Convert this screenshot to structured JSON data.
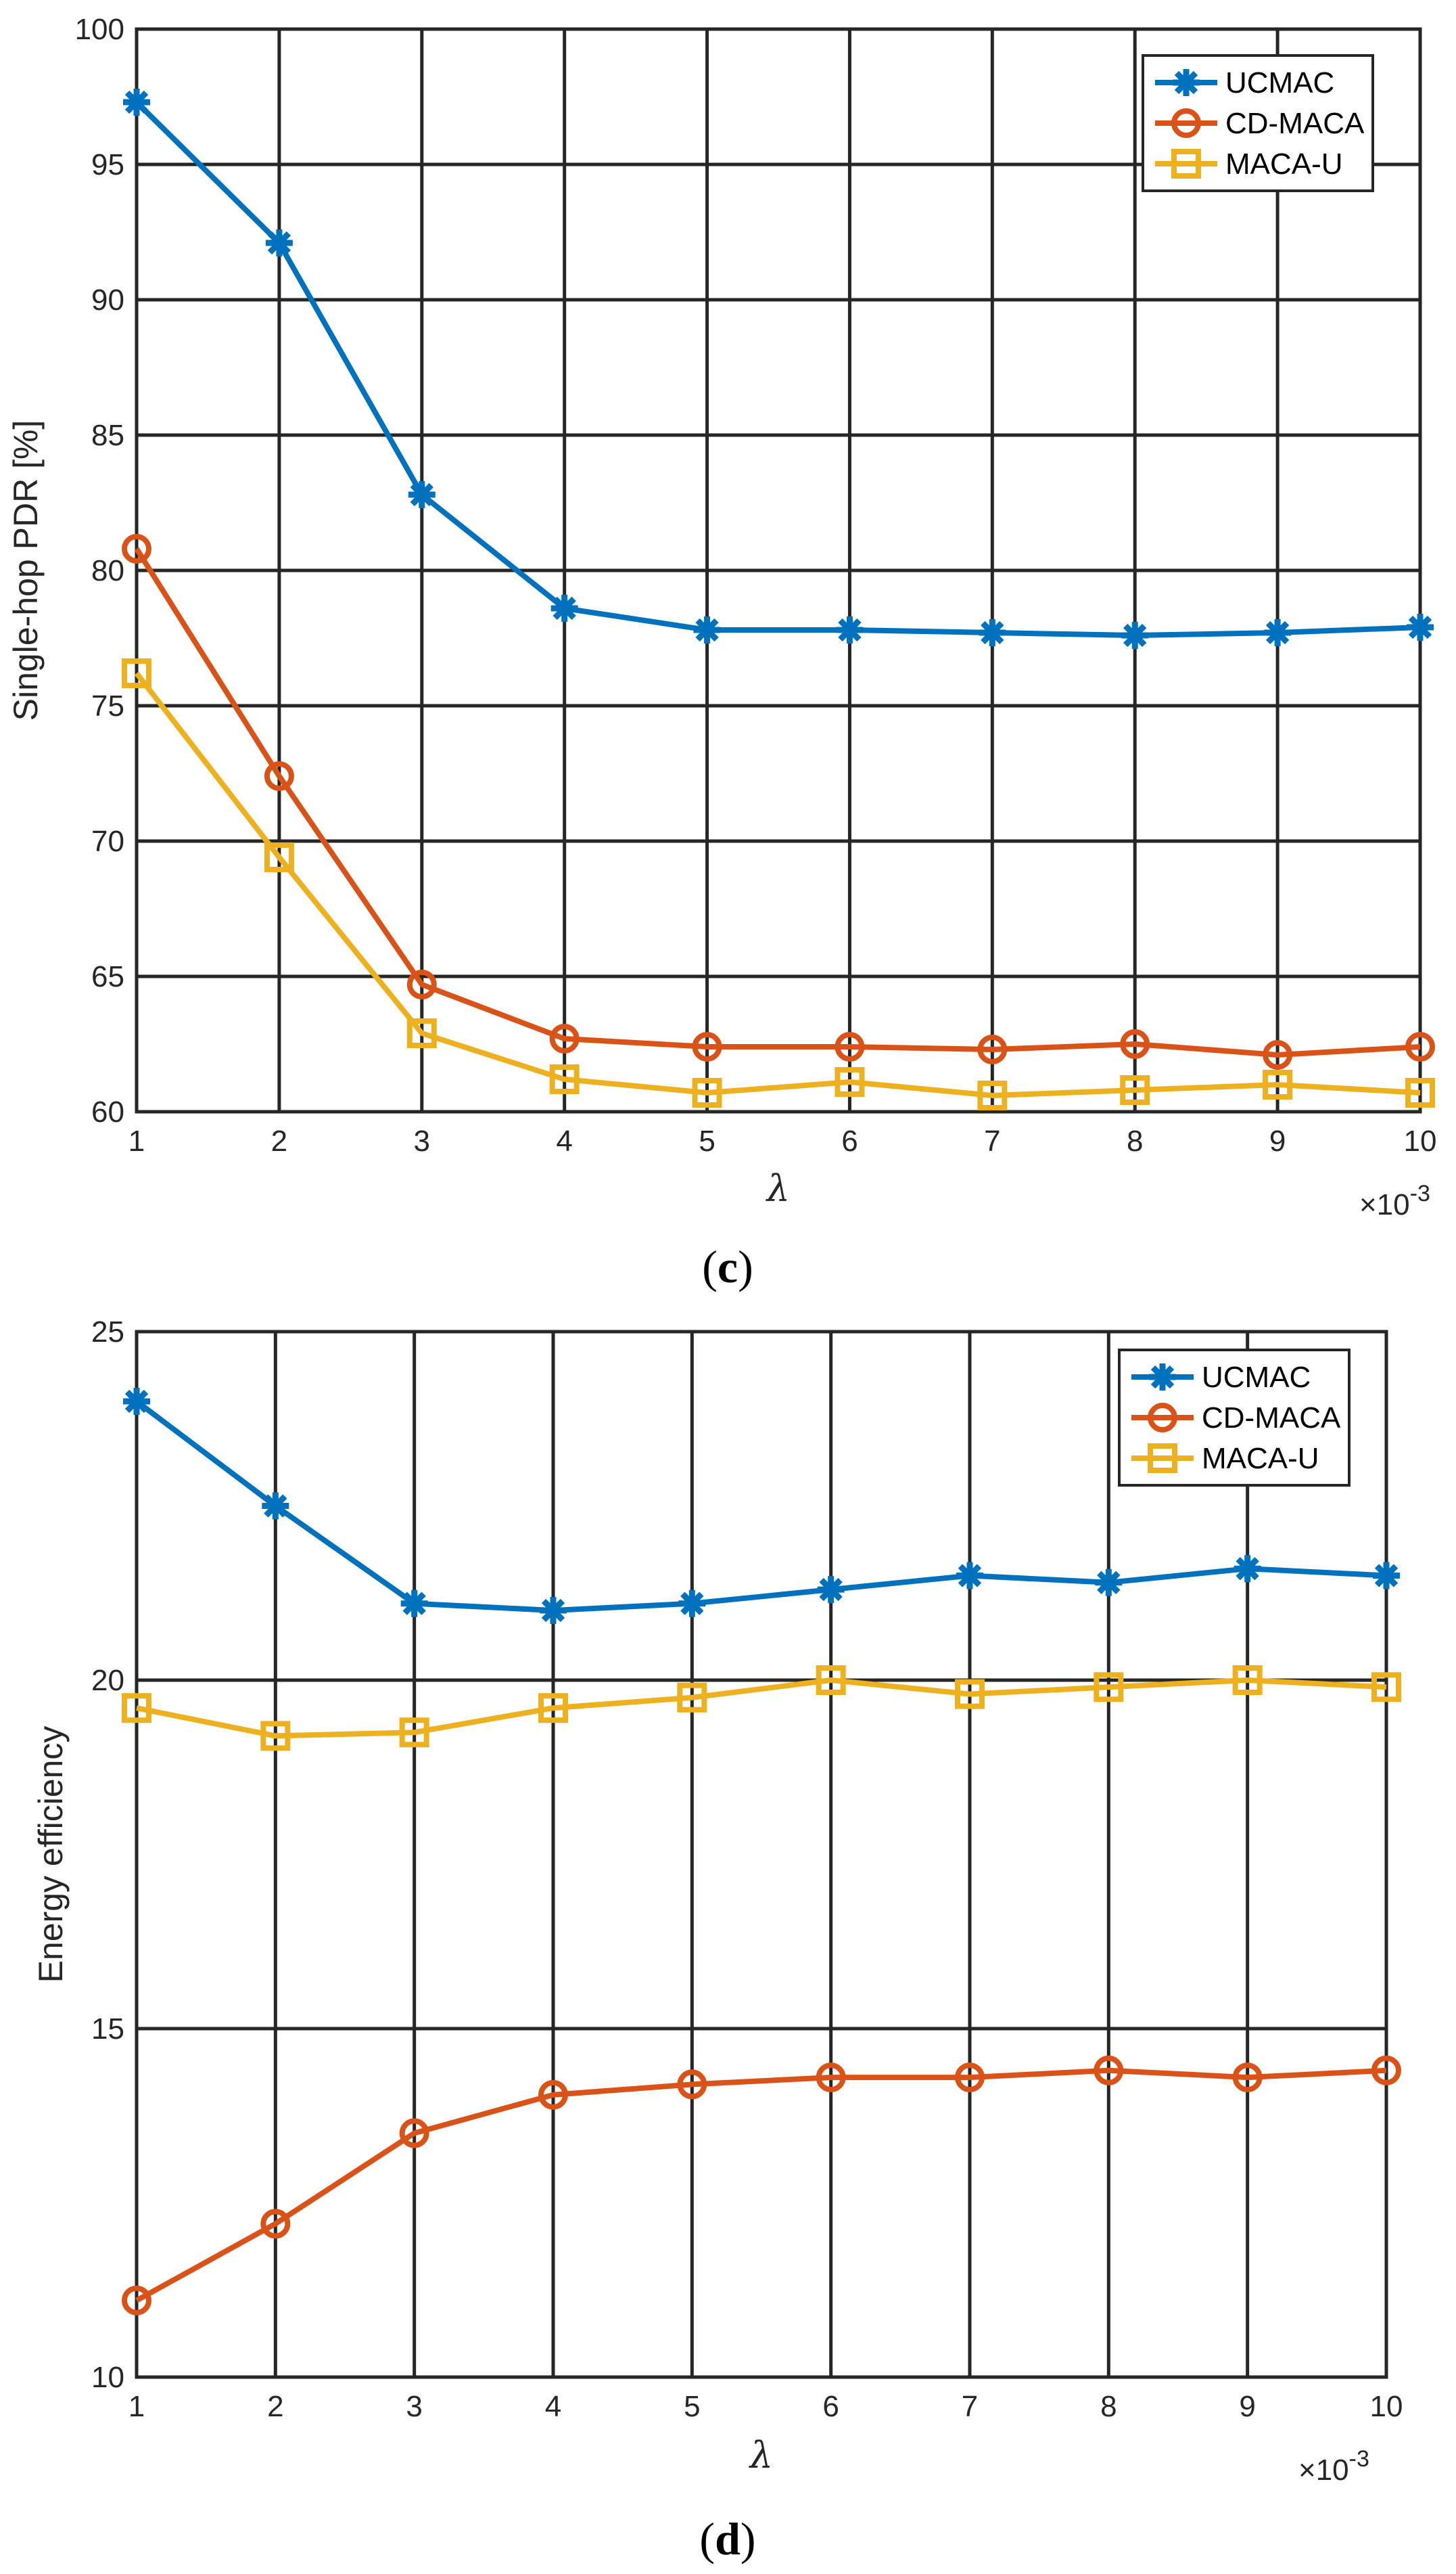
{
  "chart_data": [
    {
      "type": "line",
      "id": "c",
      "caption_letter": "c",
      "xlabel": "λ",
      "ylabel": "Single-hop PDR [%]",
      "x_exponent_label": "×10",
      "x_exponent_power": "-3",
      "xlim": [
        1,
        10
      ],
      "ylim": [
        60,
        100
      ],
      "xticks": [
        1,
        2,
        3,
        4,
        5,
        6,
        7,
        8,
        9,
        10
      ],
      "yticks": [
        60,
        65,
        70,
        75,
        80,
        85,
        90,
        95,
        100
      ],
      "grid": true,
      "legend_position": "top-right",
      "x": [
        1,
        2,
        3,
        4,
        5,
        6,
        7,
        8,
        9,
        10
      ],
      "series": [
        {
          "name": "UCMAC",
          "color": "#0072BD",
          "marker": "asterisk",
          "values": [
            97.3,
            92.1,
            82.8,
            78.6,
            77.8,
            77.8,
            77.7,
            77.6,
            77.7,
            77.9
          ]
        },
        {
          "name": "CD-MACA",
          "color": "#D95319",
          "marker": "circle",
          "values": [
            80.8,
            72.4,
            64.7,
            62.7,
            62.4,
            62.4,
            62.3,
            62.5,
            62.1,
            62.4
          ]
        },
        {
          "name": "MACA-U",
          "color": "#EDB120",
          "marker": "square",
          "values": [
            76.2,
            69.4,
            62.9,
            61.2,
            60.7,
            61.1,
            60.6,
            60.8,
            61.0,
            60.7
          ]
        }
      ]
    },
    {
      "type": "line",
      "id": "d",
      "caption_letter": "d",
      "xlabel": "λ",
      "ylabel": "Energy efficiency",
      "x_exponent_label": "×10",
      "x_exponent_power": "-3",
      "xlim": [
        1,
        10
      ],
      "ylim": [
        10,
        25
      ],
      "xticks": [
        1,
        2,
        3,
        4,
        5,
        6,
        7,
        8,
        9,
        10
      ],
      "yticks": [
        10,
        15,
        20,
        25
      ],
      "grid": true,
      "legend_position": "top-right",
      "x": [
        1,
        2,
        3,
        4,
        5,
        6,
        7,
        8,
        9,
        10
      ],
      "series": [
        {
          "name": "UCMAC",
          "color": "#0072BD",
          "marker": "asterisk",
          "values": [
            24.0,
            22.5,
            21.1,
            21.0,
            21.1,
            21.3,
            21.5,
            21.4,
            21.6,
            21.5
          ]
        },
        {
          "name": "CD-MACA",
          "color": "#D95319",
          "marker": "circle",
          "values": [
            11.1,
            12.2,
            13.5,
            14.05,
            14.2,
            14.3,
            14.3,
            14.4,
            14.3,
            14.4
          ]
        },
        {
          "name": "MACA-U",
          "color": "#EDB120",
          "marker": "square",
          "values": [
            19.6,
            19.2,
            19.25,
            19.6,
            19.75,
            20.0,
            19.8,
            19.9,
            20.0,
            19.9
          ]
        }
      ]
    }
  ]
}
